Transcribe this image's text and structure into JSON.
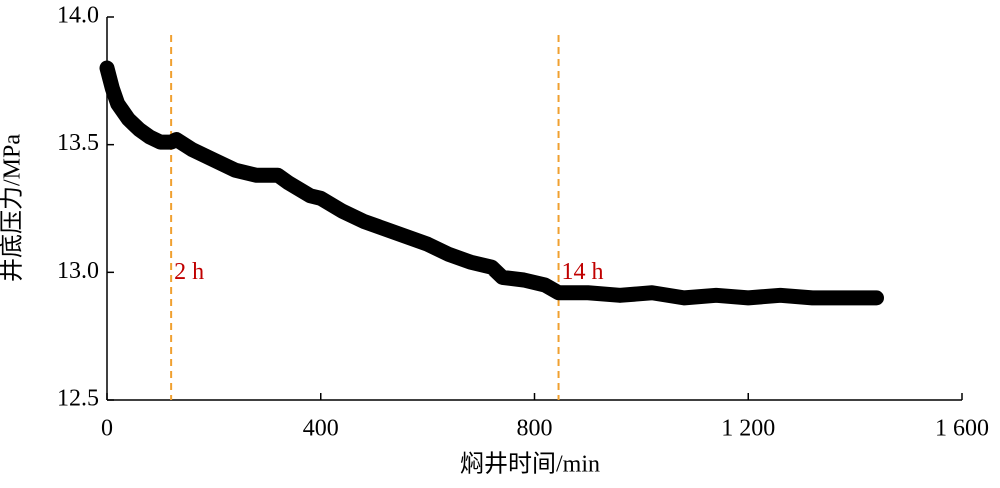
{
  "chart_data": {
    "type": "line",
    "x_label": "焖井时间/min",
    "y_label": "井底压力/MPa",
    "x": [
      0,
      10,
      20,
      40,
      60,
      80,
      100,
      120,
      130,
      160,
      200,
      240,
      280,
      320,
      340,
      380,
      400,
      440,
      480,
      520,
      560,
      600,
      640,
      680,
      720,
      740,
      780,
      820,
      845,
      900,
      960,
      1020,
      1080,
      1140,
      1200,
      1260,
      1320,
      1380,
      1440
    ],
    "series": [
      {
        "name": "井底压力",
        "color": "#000000",
        "values": [
          13.8,
          13.72,
          13.66,
          13.6,
          13.56,
          13.53,
          13.51,
          13.51,
          13.52,
          13.48,
          13.44,
          13.4,
          13.38,
          13.38,
          13.35,
          13.3,
          13.29,
          13.24,
          13.2,
          13.17,
          13.14,
          13.11,
          13.07,
          13.04,
          13.02,
          12.98,
          12.97,
          12.95,
          12.92,
          12.92,
          12.91,
          12.92,
          12.9,
          12.91,
          12.9,
          12.91,
          12.9,
          12.9,
          12.9
        ]
      }
    ],
    "xlim": [
      0,
      1600
    ],
    "ylim": [
      12.5,
      14.0
    ],
    "xticks": [
      0,
      400,
      800,
      {
        "value": 1200,
        "label": "1 200"
      },
      {
        "value": 1600,
        "label": "1 600"
      }
    ],
    "yticks": [
      {
        "value": 12.5,
        "label": "12.5"
      },
      {
        "value": 13.0,
        "label": "13.0"
      },
      13.5,
      {
        "value": 14.0,
        "label": "14.0"
      }
    ],
    "vlines": [
      {
        "x": 120,
        "label": "2 h"
      },
      {
        "x": 845,
        "label": "14 h"
      }
    ],
    "vline_color": "#f0a030",
    "annotation_color": "#c00000"
  }
}
